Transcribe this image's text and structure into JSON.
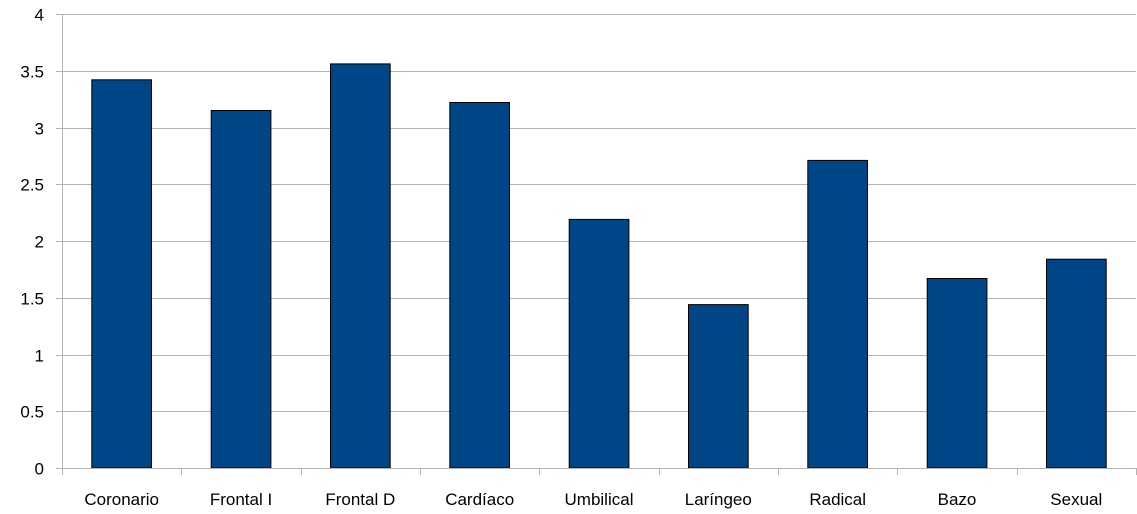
{
  "chart_data": {
    "type": "bar",
    "title": "",
    "xlabel": "",
    "ylabel": "",
    "categories": [
      "Coronario",
      "Frontal I",
      "Frontal D",
      "Cardíaco",
      "Umbilical",
      "Laríngeo",
      "Radical",
      "Bazo",
      "Sexual"
    ],
    "values": [
      3.42,
      3.15,
      3.56,
      3.22,
      2.19,
      1.44,
      2.71,
      1.67,
      1.84
    ],
    "ylim": [
      0,
      4
    ],
    "yticks": [
      0,
      0.5,
      1,
      1.5,
      2,
      2.5,
      3,
      3.5,
      4
    ],
    "ytick_labels": [
      "0",
      "0.5",
      "1",
      "1.5",
      "2",
      "2.5",
      "3",
      "3.5",
      "4"
    ],
    "grid": true,
    "legend": "none",
    "colors": {
      "bar": "#004586",
      "bar_border": "#000000",
      "grid": "#b3b3b3",
      "axis": "#b3b3b3"
    }
  }
}
